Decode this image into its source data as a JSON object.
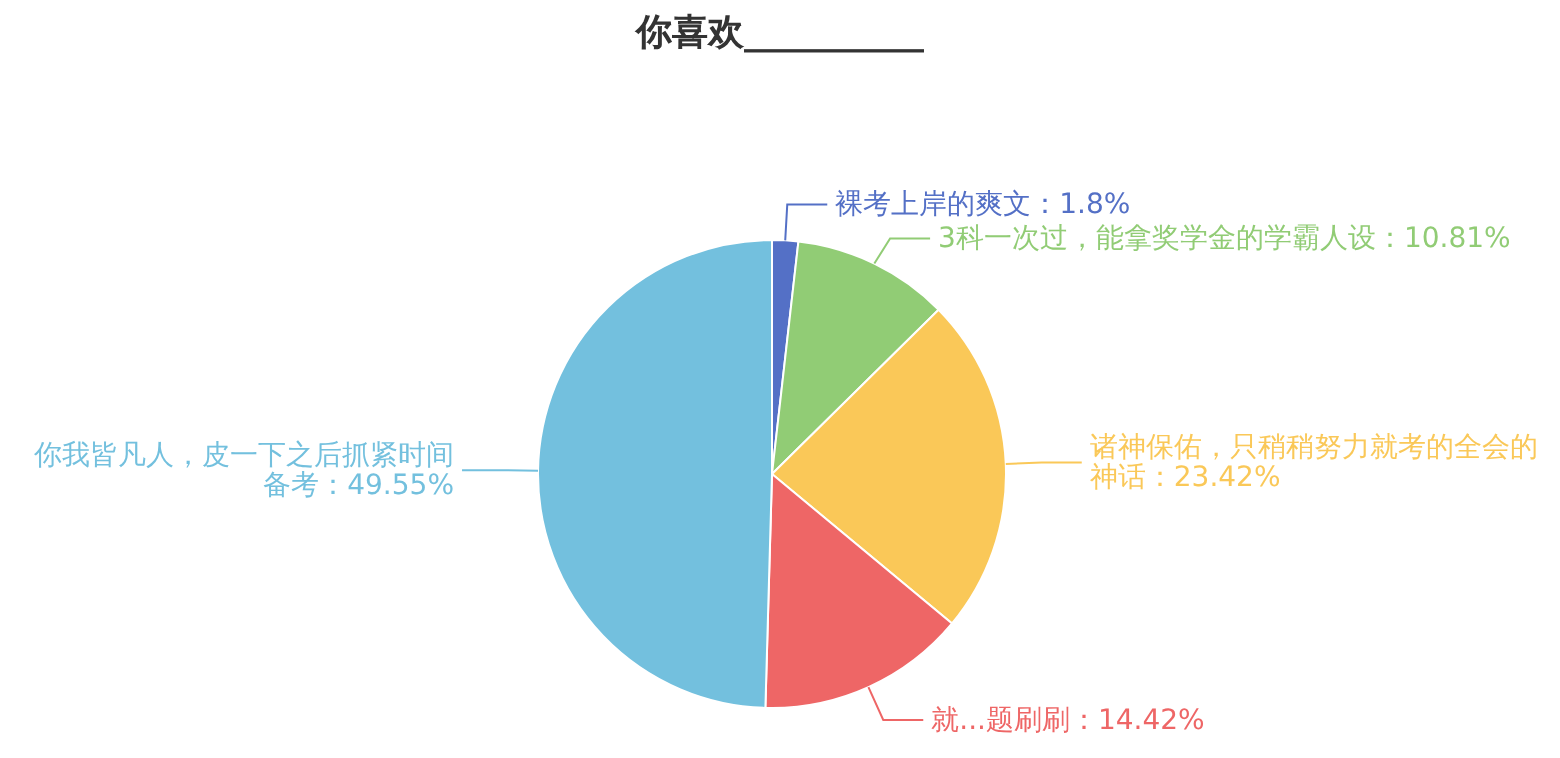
{
  "chart_data": {
    "type": "pie",
    "title": "你喜欢__________",
    "categories": [
      "裸考上岸的爽文",
      "3科一次过，能拿奖学金的学霸人设",
      "诸神保佑，只稍稍努力就考的全会的神话",
      "就...题刷刷",
      "你我皆凡人，皮一下之后抓紧时间备考"
    ],
    "values": [
      1.8,
      10.81,
      23.42,
      14.42,
      49.55
    ],
    "value_labels": [
      "1.8%",
      "10.81%",
      "23.42%",
      "14.42%",
      "49.55%"
    ],
    "colors": [
      "#5470c6",
      "#91cc75",
      "#fac858",
      "#ee6666",
      "#73c0de"
    ]
  }
}
